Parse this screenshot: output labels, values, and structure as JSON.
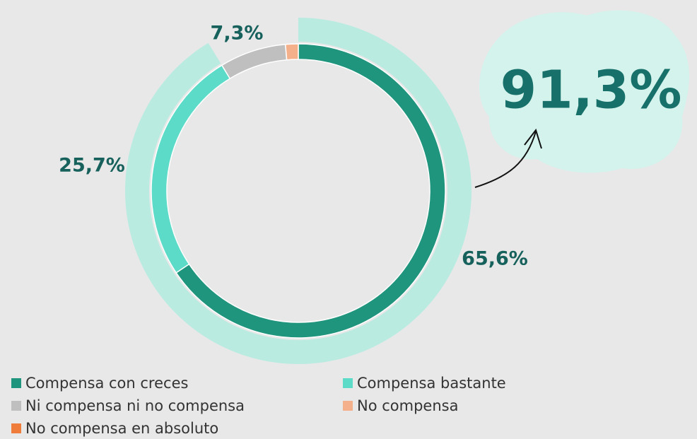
{
  "chart_data": {
    "type": "donut",
    "categories": [
      "Compensa con creces",
      "Compensa bastante",
      "Ni compensa ni no compensa",
      "No compensa",
      "No compensa en absoluto"
    ],
    "values": [
      65.6,
      25.7,
      7.3,
      1.4,
      0
    ],
    "value_labels": [
      "65,6%",
      "25,7%",
      "7,3%",
      null,
      null
    ],
    "colors": [
      "#20957e",
      "#5cdcc8",
      "#bfbfbf",
      "#f4b08a",
      "#f07c3c"
    ],
    "highlight": {
      "value": 91.3,
      "label": "91,3%",
      "color": "#b9ebe1"
    }
  }
}
